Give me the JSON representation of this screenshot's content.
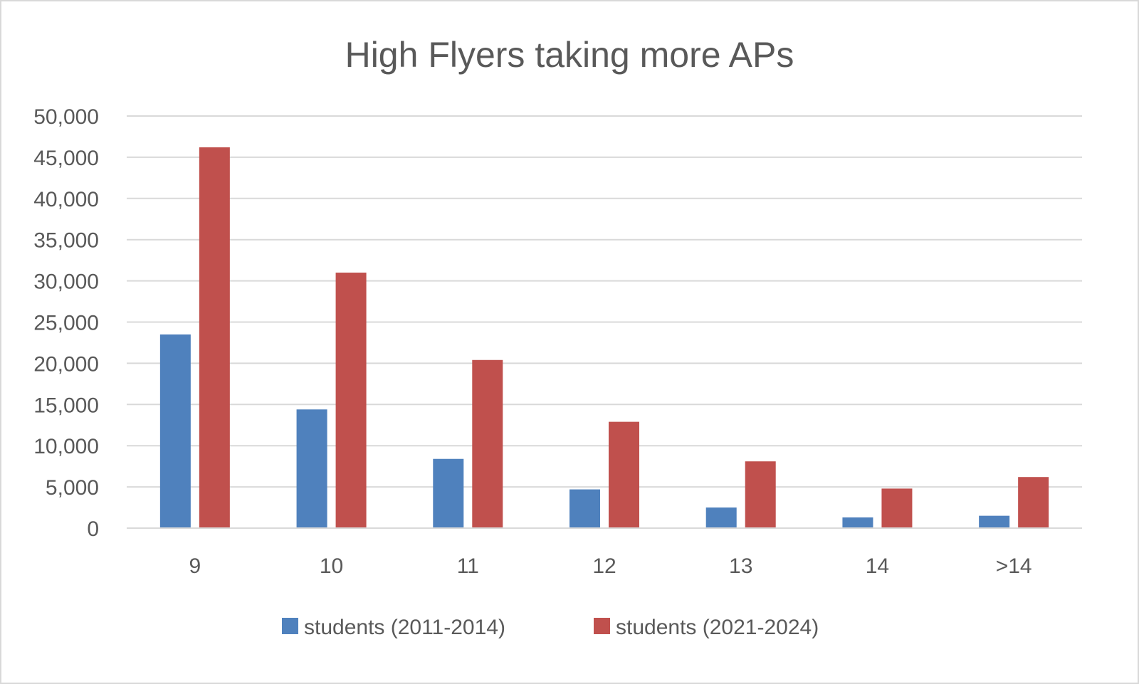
{
  "chart_data": {
    "type": "bar",
    "title": "High Flyers taking more APs",
    "xlabel": "",
    "ylabel": "",
    "ylim": [
      0,
      50000
    ],
    "yticks": [
      "0",
      "5,000",
      "10,000",
      "15,000",
      "20,000",
      "25,000",
      "30,000",
      "35,000",
      "40,000",
      "45,000",
      "50,000"
    ],
    "categories": [
      "9",
      "10",
      "11",
      "12",
      "13",
      "14",
      ">14"
    ],
    "series": [
      {
        "name": "students (2011-2014)",
        "color": "#4f81bd",
        "values": [
          23500,
          14400,
          8400,
          4700,
          2500,
          1300,
          1500
        ]
      },
      {
        "name": "students (2021-2024)",
        "color": "#c0504d",
        "values": [
          46200,
          31000,
          20400,
          12900,
          8100,
          4800,
          6200
        ]
      }
    ],
    "grid": true,
    "legend_position": "bottom"
  }
}
